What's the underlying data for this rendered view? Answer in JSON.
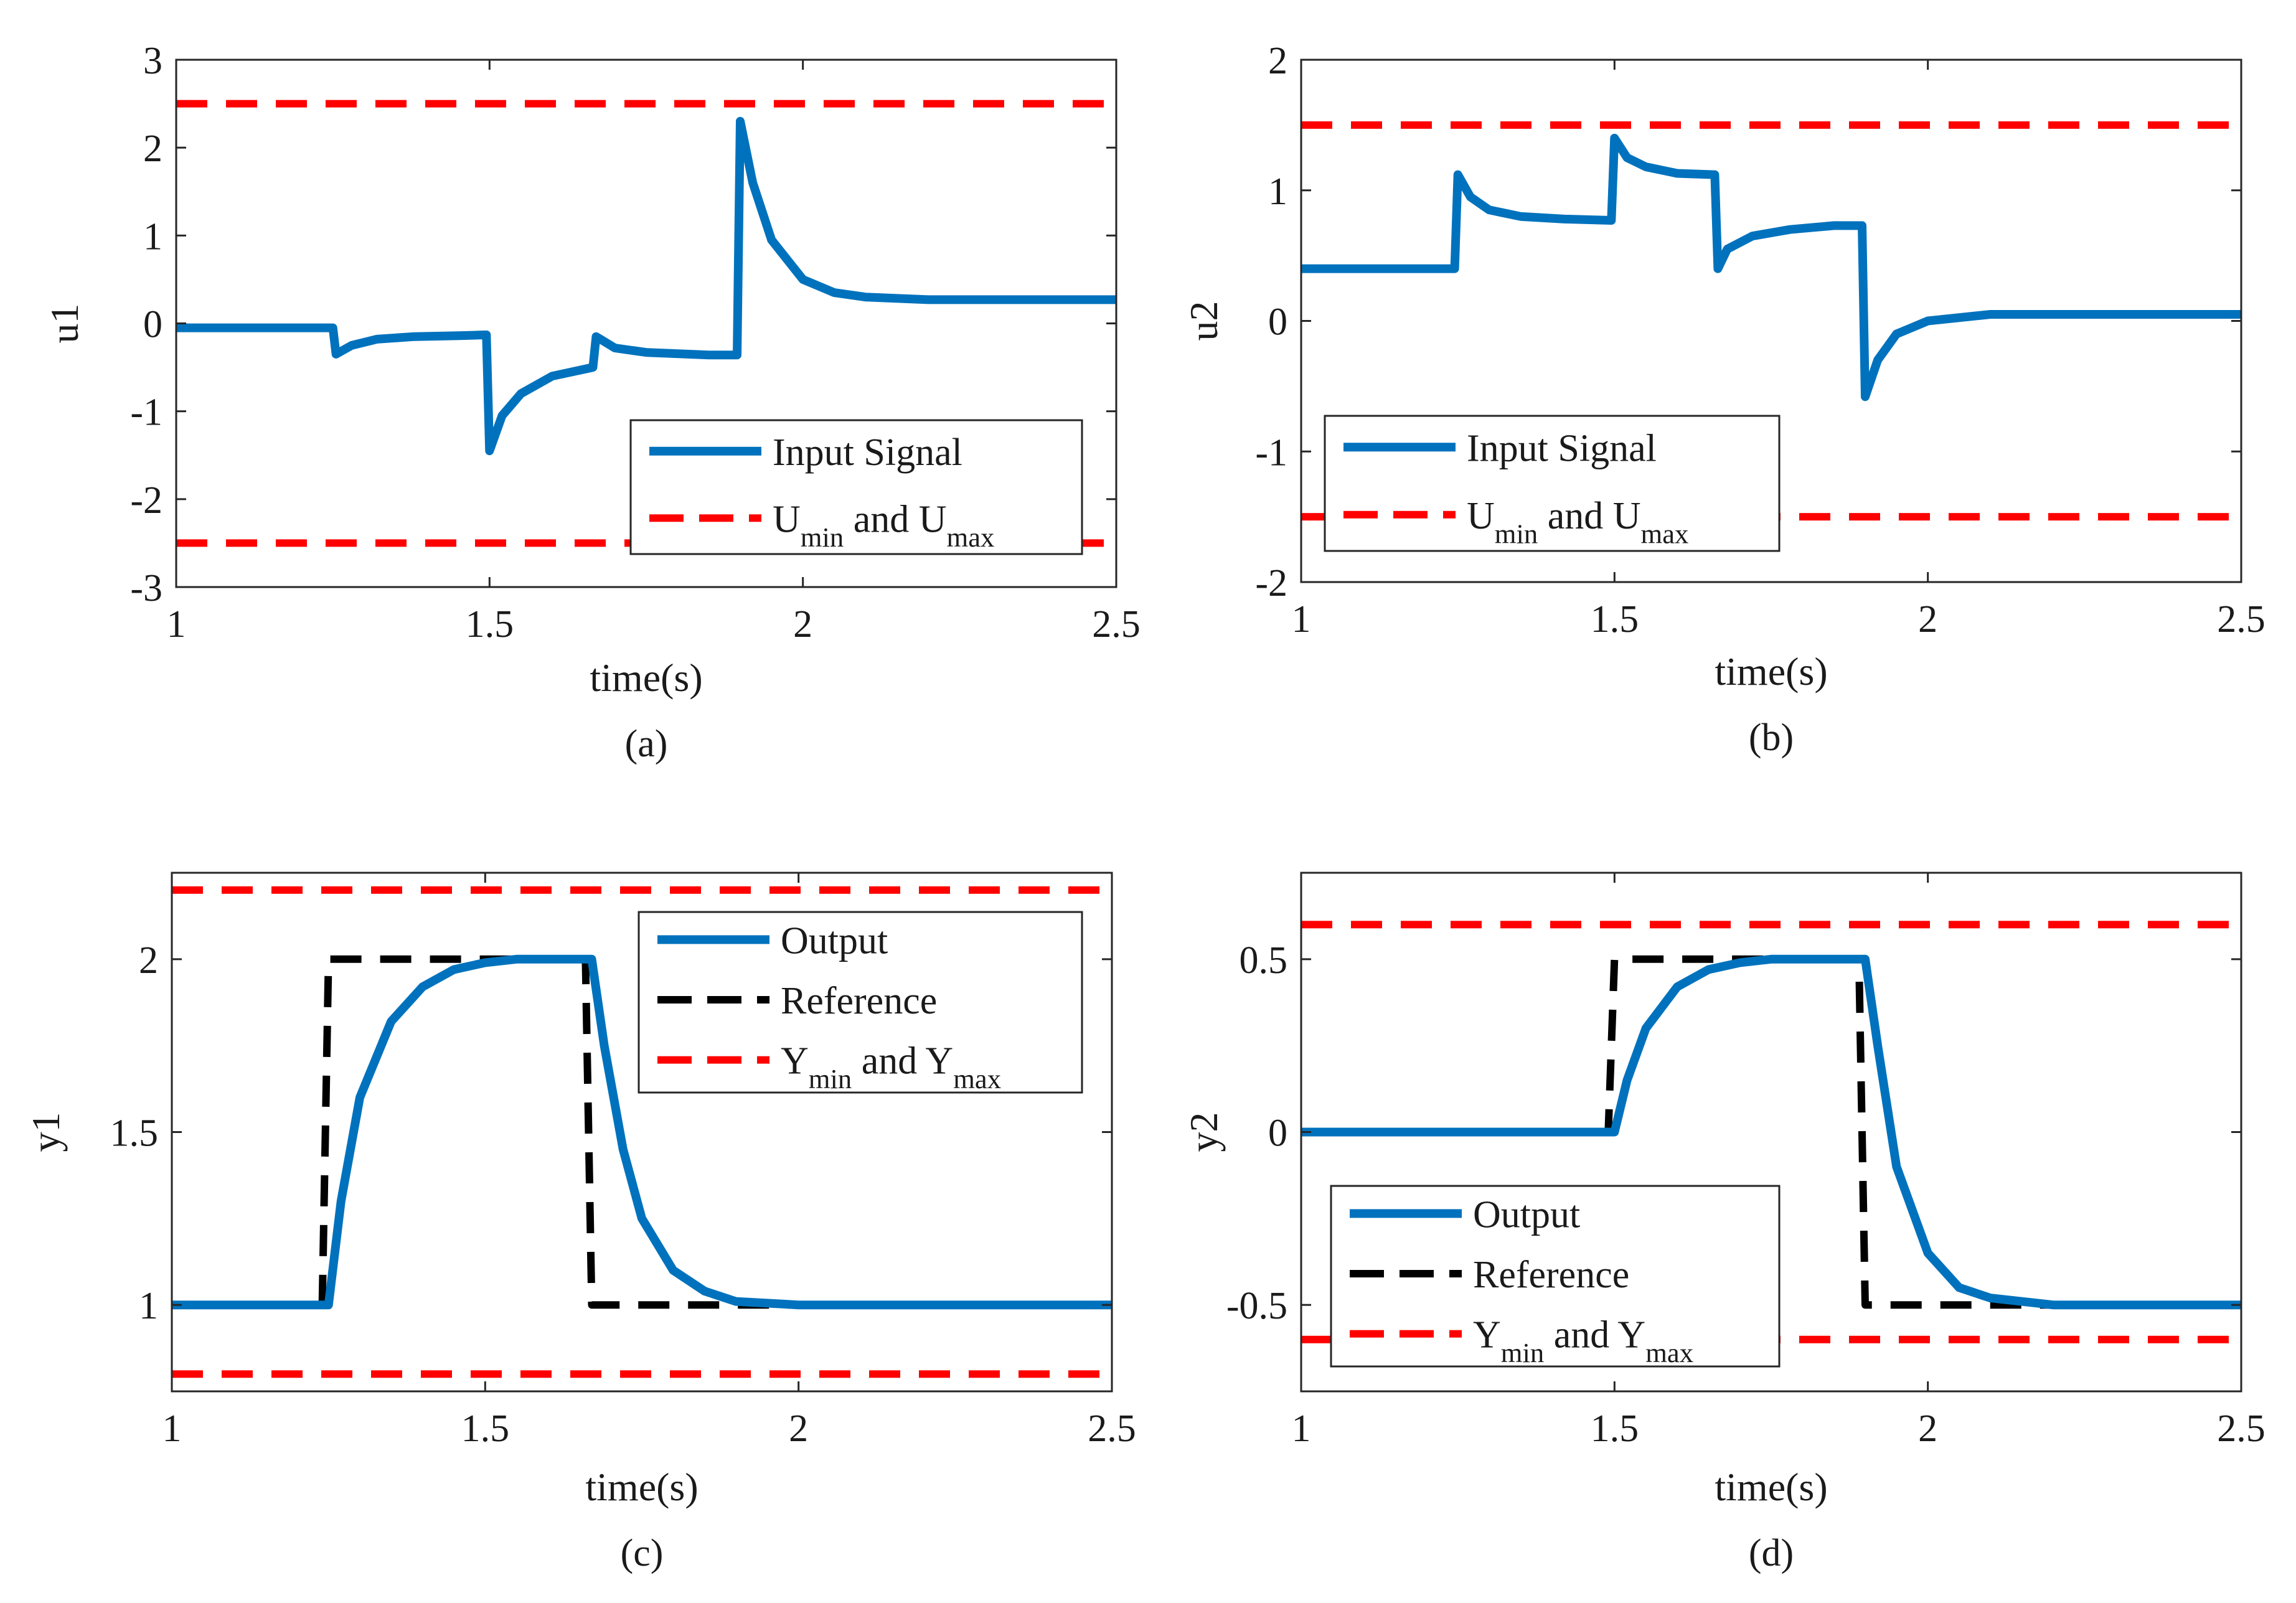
{
  "colors": {
    "signal": "#0072BD",
    "bound": "#FF0000",
    "reference": "#000000",
    "axis": "#262626"
  },
  "chart_data": [
    {
      "id": "a",
      "type": "line",
      "caption": "(a)",
      "xlabel": "time(s)",
      "ylabel": "u1",
      "xlim": [
        1,
        2.5
      ],
      "ylim": [
        -3,
        3
      ],
      "xticks": [
        1,
        1.5,
        2,
        2.5
      ],
      "xtick_labels": [
        "1",
        "1.5",
        "2",
        "2.5"
      ],
      "yticks": [
        -3,
        -2,
        -1,
        0,
        1,
        2,
        3
      ],
      "ytick_labels": [
        "-3",
        "-2",
        "-1",
        "0",
        "1",
        "2",
        "3"
      ],
      "legend": {
        "position": "bottom-right",
        "entries": [
          "Input Signal",
          "U_min and U_max"
        ]
      },
      "series": [
        {
          "name": "Input Signal",
          "style": "signal",
          "x": [
            1,
            1.25,
            1.255,
            1.28,
            1.32,
            1.38,
            1.45,
            1.495,
            1.5,
            1.52,
            1.55,
            1.6,
            1.665,
            1.67,
            1.7,
            1.75,
            1.85,
            1.895,
            1.9,
            1.92,
            1.95,
            2.0,
            2.05,
            2.1,
            2.2,
            2.5
          ],
          "y": [
            -0.05,
            -0.05,
            -0.35,
            -0.25,
            -0.18,
            -0.15,
            -0.14,
            -0.13,
            -1.45,
            -1.05,
            -0.8,
            -0.6,
            -0.5,
            -0.15,
            -0.28,
            -0.33,
            -0.36,
            -0.36,
            2.3,
            1.6,
            0.95,
            0.5,
            0.35,
            0.3,
            0.27,
            0.27
          ]
        },
        {
          "name": "U_max",
          "style": "bound",
          "x": [
            1,
            2.5
          ],
          "y": [
            2.5,
            2.5
          ]
        },
        {
          "name": "U_min",
          "style": "bound",
          "x": [
            1,
            2.5
          ],
          "y": [
            -2.5,
            -2.5
          ]
        }
      ]
    },
    {
      "id": "b",
      "type": "line",
      "caption": "(b)",
      "xlabel": "time(s)",
      "ylabel": "u2",
      "xlim": [
        1,
        2.5
      ],
      "ylim": [
        -2,
        2
      ],
      "xticks": [
        1,
        1.5,
        2,
        2.5
      ],
      "xtick_labels": [
        "1",
        "1.5",
        "2",
        "2.5"
      ],
      "yticks": [
        -2,
        -1,
        0,
        1,
        2
      ],
      "ytick_labels": [
        "-2",
        "-1",
        "0",
        "1",
        "2"
      ],
      "legend": {
        "position": "bottom-left",
        "entries": [
          "Input Signal",
          "U_min and U_max"
        ]
      },
      "series": [
        {
          "name": "Input Signal",
          "style": "signal",
          "x": [
            1,
            1.245,
            1.25,
            1.27,
            1.3,
            1.35,
            1.42,
            1.495,
            1.5,
            1.52,
            1.55,
            1.6,
            1.66,
            1.665,
            1.68,
            1.72,
            1.78,
            1.85,
            1.895,
            1.9,
            1.92,
            1.95,
            2.0,
            2.1,
            2.5
          ],
          "y": [
            0.4,
            0.4,
            1.12,
            0.95,
            0.85,
            0.8,
            0.78,
            0.77,
            1.4,
            1.25,
            1.18,
            1.13,
            1.12,
            0.4,
            0.55,
            0.65,
            0.7,
            0.73,
            0.73,
            -0.58,
            -0.3,
            -0.1,
            0.0,
            0.05,
            0.05
          ]
        },
        {
          "name": "U_max",
          "style": "bound",
          "x": [
            1,
            2.5
          ],
          "y": [
            1.5,
            1.5
          ]
        },
        {
          "name": "U_min",
          "style": "bound",
          "x": [
            1,
            2.5
          ],
          "y": [
            -1.5,
            -1.5
          ]
        }
      ]
    },
    {
      "id": "c",
      "type": "line",
      "caption": "(c)",
      "xlabel": "time(s)",
      "ylabel": "y1",
      "xlim": [
        1,
        2.5
      ],
      "ylim": [
        0.75,
        2.25
      ],
      "xticks": [
        1,
        1.5,
        2,
        2.5
      ],
      "xtick_labels": [
        "1",
        "1.5",
        "2",
        "2.5"
      ],
      "yticks": [
        1,
        1.5,
        2
      ],
      "ytick_labels": [
        "1",
        "1.5",
        "2"
      ],
      "legend": {
        "position": "top-right",
        "entries": [
          "Output",
          "Reference",
          "Y_min and Y_max"
        ]
      },
      "series": [
        {
          "name": "Y_max",
          "style": "bound",
          "x": [
            1,
            2.5
          ],
          "y": [
            2.2,
            2.2
          ]
        },
        {
          "name": "Y_min",
          "style": "bound",
          "x": [
            1,
            2.5
          ],
          "y": [
            0.8,
            0.8
          ]
        },
        {
          "name": "Reference",
          "style": "reference",
          "x": [
            1,
            1.24,
            1.25,
            1.66,
            1.67,
            2.5
          ],
          "y": [
            1,
            1,
            2,
            2,
            1,
            1
          ]
        },
        {
          "name": "Output",
          "style": "signal",
          "x": [
            1,
            1.25,
            1.27,
            1.3,
            1.35,
            1.4,
            1.45,
            1.5,
            1.55,
            1.6,
            1.67,
            1.69,
            1.72,
            1.75,
            1.8,
            1.85,
            1.9,
            2.0,
            2.5
          ],
          "y": [
            1,
            1,
            1.3,
            1.6,
            1.82,
            1.92,
            1.97,
            1.99,
            2.0,
            2.0,
            2.0,
            1.75,
            1.45,
            1.25,
            1.1,
            1.04,
            1.01,
            1.0,
            1.0
          ]
        }
      ]
    },
    {
      "id": "d",
      "type": "line",
      "caption": "(d)",
      "xlabel": "time(s)",
      "ylabel": "y2",
      "xlim": [
        1,
        2.5
      ],
      "ylim": [
        -0.75,
        0.75
      ],
      "xticks": [
        1,
        1.5,
        2,
        2.5
      ],
      "xtick_labels": [
        "1",
        "1.5",
        "2",
        "2.5"
      ],
      "yticks": [
        -0.5,
        0,
        0.5
      ],
      "ytick_labels": [
        "-0.5",
        "0",
        "0.5"
      ],
      "legend": {
        "position": "bottom-left",
        "entries": [
          "Output",
          "Reference",
          "Y_min and Y_max"
        ]
      },
      "series": [
        {
          "name": "Y_max",
          "style": "bound",
          "x": [
            1,
            2.5
          ],
          "y": [
            0.6,
            0.6
          ]
        },
        {
          "name": "Y_min",
          "style": "bound",
          "x": [
            1,
            2.5
          ],
          "y": [
            -0.6,
            -0.6
          ]
        },
        {
          "name": "Reference",
          "style": "reference",
          "x": [
            1,
            1.49,
            1.5,
            1.89,
            1.9,
            2.5
          ],
          "y": [
            0,
            0,
            0.5,
            0.5,
            -0.5,
            -0.5
          ]
        },
        {
          "name": "Output",
          "style": "signal",
          "x": [
            1,
            1.5,
            1.52,
            1.55,
            1.6,
            1.65,
            1.7,
            1.75,
            1.8,
            1.9,
            1.92,
            1.95,
            2.0,
            2.05,
            2.1,
            2.2,
            2.5
          ],
          "y": [
            0,
            0,
            0.15,
            0.3,
            0.42,
            0.47,
            0.49,
            0.5,
            0.5,
            0.5,
            0.25,
            -0.1,
            -0.35,
            -0.45,
            -0.48,
            -0.5,
            -0.5
          ]
        }
      ]
    }
  ]
}
